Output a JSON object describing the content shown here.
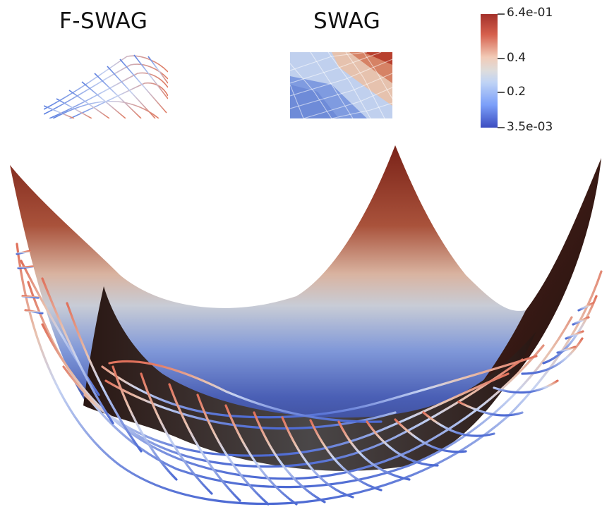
{
  "labels": {
    "fswag": "F-SWAG",
    "swag": "SWAG"
  },
  "colorbar": {
    "max_label": "6.4e-01",
    "tick_04": "0.4",
    "tick_02": "0.2",
    "min_label": "3.5e-03",
    "min_value": 0.0035,
    "max_value": 0.64,
    "stops": [
      "#3b4cc0",
      "#7b9ff9",
      "#c0d4f5",
      "#dddcdc",
      "#f2cbb7",
      "#ee8468",
      "#b40426"
    ]
  },
  "colors": {
    "cool": "#4a66d0",
    "neutral": "#dddcdc",
    "warm": "#b03a2e",
    "shadow": "#2a1a16"
  }
}
